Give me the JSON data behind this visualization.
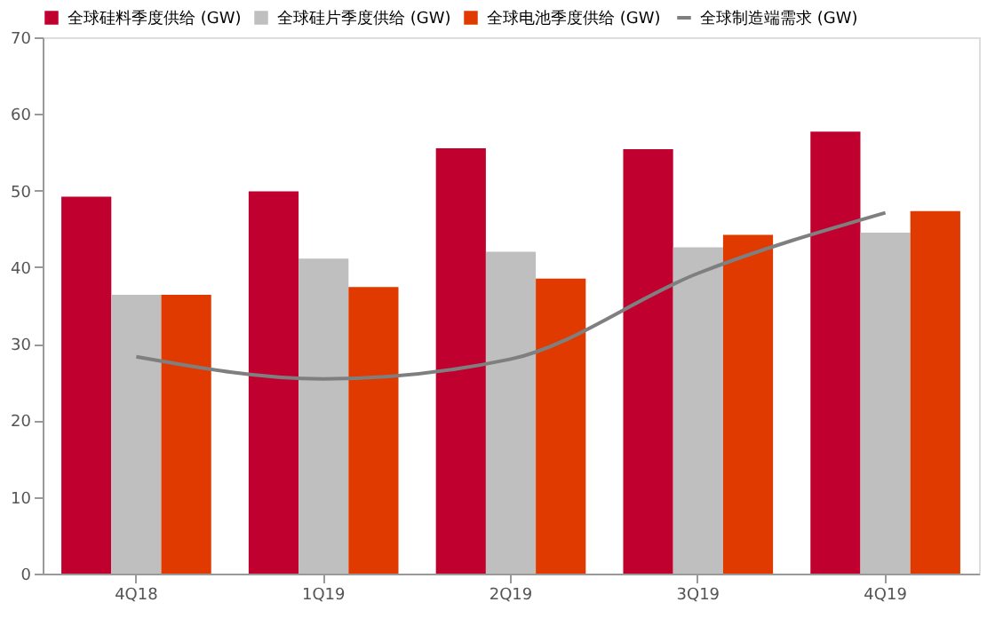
{
  "chart_data": {
    "type": "bar",
    "categories": [
      "4Q18",
      "1Q19",
      "2Q19",
      "3Q19",
      "4Q19"
    ],
    "series": [
      {
        "name": "全球硅料季度供给 (GW)",
        "color": "#c0002f",
        "values": [
          49.2,
          49.9,
          55.5,
          55.4,
          57.7
        ]
      },
      {
        "name": "全球硅片季度供给 (GW)",
        "color": "#bfbfbf",
        "values": [
          36.4,
          41.1,
          42.0,
          42.6,
          44.5
        ]
      },
      {
        "name": "全球电池季度供给 (GW)",
        "color": "#e03a00",
        "values": [
          36.4,
          37.4,
          38.5,
          44.2,
          47.3
        ]
      },
      {
        "name": "全球制造端需求 (GW)",
        "color": "#7f7f7f",
        "type": "line",
        "values": [
          28.3,
          25.4,
          28.0,
          39.2,
          47.1
        ]
      }
    ],
    "ylim": [
      0,
      70
    ],
    "yticks": [
      0,
      10,
      20,
      30,
      40,
      50,
      60,
      70
    ],
    "grid": false,
    "legend": "top",
    "marker": "none",
    "line_style": "solid"
  }
}
